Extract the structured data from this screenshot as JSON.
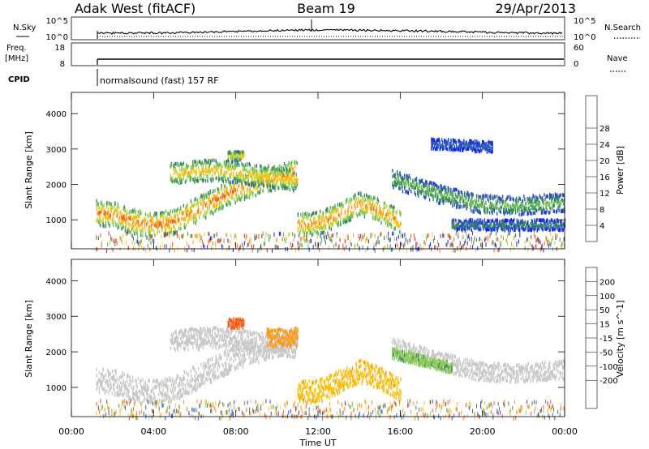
{
  "header": {
    "station": "Adak West (fitACF)",
    "beam": "Beam 19",
    "date": "29/Apr/2013"
  },
  "panels": {
    "nsky": {
      "left_label": "N.Sky",
      "left_ticks": [
        "10^5",
        "10^0"
      ],
      "right_ticks": [
        "10^5",
        "10^0"
      ],
      "right_label": "N.Search"
    },
    "freq": {
      "left_label_top": "Freq.",
      "left_label_unit": "[MHz]",
      "left_ticks": [
        "18",
        "8"
      ],
      "right_ticks": [
        "60",
        "0"
      ],
      "right_label": "Nave"
    },
    "cpid": {
      "label": "CPID",
      "program": "normalsound (fast) 157 RF"
    }
  },
  "colors": {
    "power": [
      "#0a1eff",
      "#2a4fd0",
      "#3b8a5a",
      "#66bb55",
      "#aad84a",
      "#ffc20a",
      "#ff9a10",
      "#ff5a10",
      "#e81010"
    ],
    "velocity": [
      "#e81010",
      "#ff5a10",
      "#ff9a10",
      "#ffc20a",
      "#c8c8c8",
      "#c8c8c8",
      "#88cc55",
      "#3b8a5a",
      "#2a4fd0",
      "#1a2a9a"
    ]
  },
  "chart_data": [
    {
      "type": "heatmap",
      "name": "power",
      "ylabel": "Slant Range [km]",
      "y_ticks": [
        "1000",
        "2000",
        "3000",
        "4000"
      ],
      "ylim": [
        180,
        4600
      ],
      "x_ticks": [
        "00:00",
        "04:00",
        "08:00",
        "12:00",
        "16:00",
        "20:00",
        "00:00"
      ],
      "xlim_hours": [
        0,
        24
      ],
      "colorbar": {
        "label": "Power [dB]",
        "ticks": [
          "4",
          "8",
          "12",
          "16",
          "20",
          "24",
          "28"
        ]
      },
      "echo_bands": [
        {
          "start": 0,
          "end": 11,
          "center_km": [
            1250,
            1250,
            1200,
            1000,
            900,
            1000,
            1300,
            1600,
            1900,
            2100,
            2250,
            2400
          ],
          "width_km": 350,
          "peak_db": 26
        },
        {
          "start": 4.8,
          "end": 11,
          "center_km": [
            2350,
            2400,
            2450,
            2400,
            2300,
            2250,
            2150
          ],
          "width_km": 300,
          "peak_db": 21
        },
        {
          "start": 7.6,
          "end": 8.4,
          "center_km": [
            2850,
            2850
          ],
          "width_km": 130,
          "peak_db": 20
        },
        {
          "start": 11,
          "end": 16,
          "center_km": [
            900,
            950,
            1200,
            1500,
            1300,
            1000
          ],
          "width_km": 320,
          "peak_db": 25
        },
        {
          "start": 15.6,
          "end": 24,
          "center_km": [
            2200,
            2000,
            1800,
            1650,
            1500,
            1450,
            1450,
            1500,
            1550
          ],
          "width_km": 260,
          "peak_db": 13
        },
        {
          "start": 18.5,
          "end": 24,
          "center_km": [
            900,
            900,
            900,
            900,
            900
          ],
          "width_km": 150,
          "peak_db": 9
        },
        {
          "start": 17.5,
          "end": 20.5,
          "center_km": [
            3200,
            3150,
            3100
          ],
          "width_km": 150,
          "peak_db": 7
        }
      ]
    },
    {
      "type": "heatmap",
      "name": "velocity",
      "ylabel": "Slant Range [km]",
      "y_ticks": [
        "1000",
        "2000",
        "3000",
        "4000"
      ],
      "ylim": [
        180,
        4600
      ],
      "x_ticks": [
        "00:00",
        "04:00",
        "08:00",
        "12:00",
        "16:00",
        "20:00",
        "00:00"
      ],
      "xlim_hours": [
        0,
        24
      ],
      "xlabel": "Time UT",
      "colorbar": {
        "label": "Velocity [m s^-1]",
        "ticks": [
          "200",
          "100",
          "50",
          "15",
          "-15",
          "-50",
          "-100",
          "-200"
        ]
      },
      "echo_bands": [
        {
          "start": 0,
          "end": 11,
          "center_km": [
            1250,
            1250,
            1200,
            1000,
            900,
            1000,
            1300,
            1600,
            1900,
            2100,
            2250,
            2400
          ],
          "width_km": 350,
          "velocity": 0
        },
        {
          "start": 4.8,
          "end": 11,
          "center_km": [
            2350,
            2400,
            2450,
            2400,
            2300,
            2250,
            2150
          ],
          "width_km": 300,
          "velocity": 0
        },
        {
          "start": 7.6,
          "end": 8.4,
          "center_km": [
            2850,
            2850
          ],
          "width_km": 130,
          "velocity": -150
        },
        {
          "start": 9.5,
          "end": 11,
          "center_km": [
            2450,
            2450
          ],
          "width_km": 250,
          "velocity": -80
        },
        {
          "start": 11,
          "end": 16,
          "center_km": [
            900,
            950,
            1200,
            1500,
            1300,
            1000
          ],
          "width_km": 320,
          "velocity": -40
        },
        {
          "start": 15.6,
          "end": 24,
          "center_km": [
            2200,
            2000,
            1800,
            1650,
            1500,
            1450,
            1450,
            1500,
            1550
          ],
          "width_km": 260,
          "velocity": 0
        },
        {
          "start": 15.6,
          "end": 18.5,
          "center_km": [
            2000,
            1800,
            1600
          ],
          "width_km": 150,
          "velocity": 40
        }
      ]
    }
  ]
}
